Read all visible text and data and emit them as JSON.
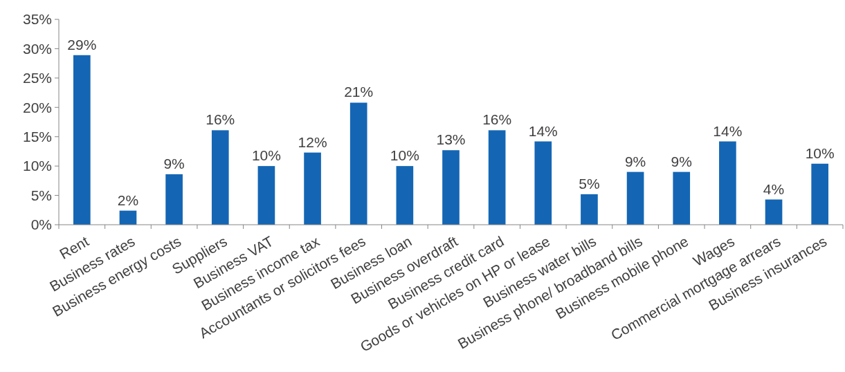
{
  "chart_data": {
    "type": "bar",
    "categories": [
      "Rent",
      "Business rates",
      "Business energy costs",
      "Suppliers",
      "Business VAT",
      "Business income tax",
      "Accountants or solicitors fees",
      "Business loan",
      "Business overdraft",
      "Business credit card",
      "Goods or vehicles on HP or lease",
      "Business water bills",
      "Business phone/ broadband bills",
      "Business mobile phone",
      "Wages",
      "Commercial mortgage arrears",
      "Business insurances"
    ],
    "values": [
      28.9,
      2.4,
      8.6,
      16.1,
      10,
      12.3,
      20.8,
      10,
      12.7,
      16.1,
      14.2,
      5.2,
      9,
      9,
      14.2,
      4.3,
      10.4
    ],
    "value_labels": [
      "29%",
      "2%",
      "9%",
      "16%",
      "10%",
      "12%",
      "21%",
      "10%",
      "13%",
      "16%",
      "14%",
      "5%",
      "9%",
      "9%",
      "14%",
      "4%",
      "10%"
    ],
    "color": "#1466b4",
    "ylim": [
      0,
      35
    ],
    "yticks": [
      {
        "value": 0,
        "label": "0%"
      },
      {
        "value": 5,
        "label": "5%"
      },
      {
        "value": 10,
        "label": "10%"
      },
      {
        "value": 15,
        "label": "15%"
      },
      {
        "value": 20,
        "label": "20%"
      },
      {
        "value": 25,
        "label": "25%"
      },
      {
        "value": 30,
        "label": "30%"
      },
      {
        "value": 35,
        "label": "35%"
      }
    ]
  }
}
